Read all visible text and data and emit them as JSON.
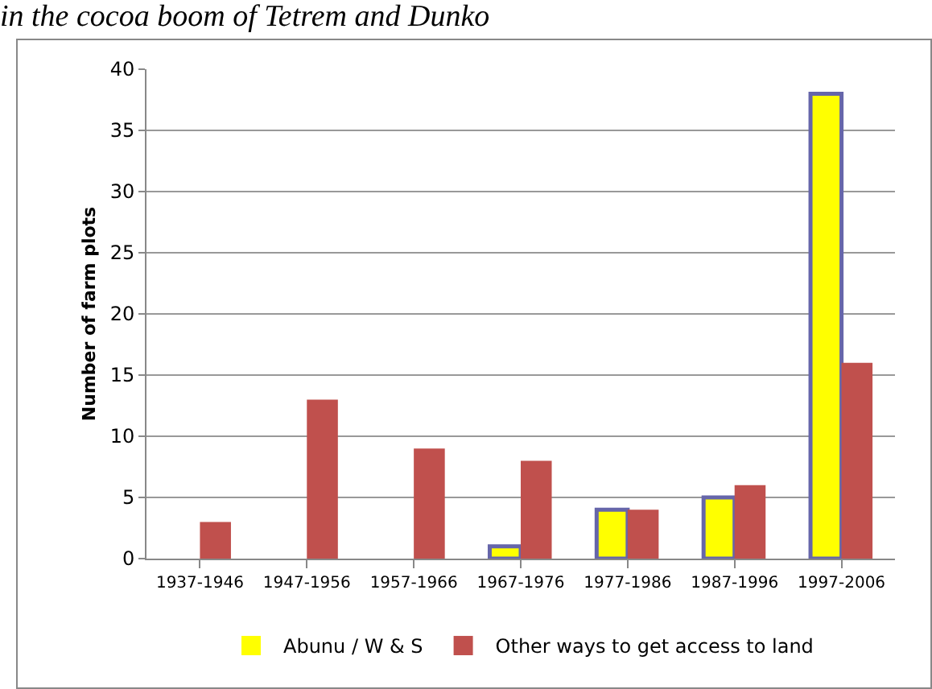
{
  "chart_data": {
    "type": "bar",
    "title": "in the cocoa boom of Tetrem and Dunko",
    "ylabel": "Number of farm plots",
    "categories": [
      "1937-1946",
      "1947-1956",
      "1957-1966",
      "1967-1976",
      "1977-1986",
      "1987-1996",
      "1997-2006"
    ],
    "series": [
      {
        "name": "Abunu / W & S",
        "color": "#ffff00",
        "values": [
          0,
          0,
          0,
          1,
          4,
          5,
          38
        ]
      },
      {
        "name": "Other ways to get access to land",
        "color": "#c0504d",
        "values": [
          3,
          13,
          9,
          8,
          4,
          6,
          16
        ]
      }
    ],
    "ylim": [
      0,
      40
    ],
    "yticks": [
      0,
      5,
      10,
      15,
      20,
      25,
      30,
      35,
      40
    ],
    "grid": "y",
    "legend": "bottom"
  }
}
